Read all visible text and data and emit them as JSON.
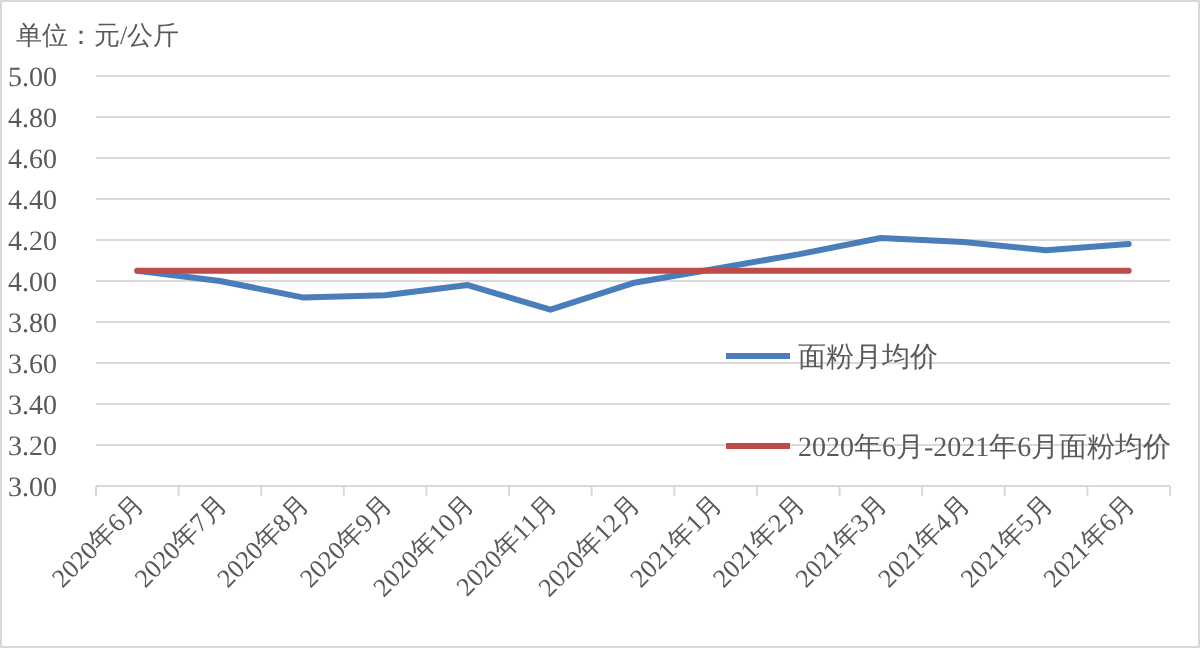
{
  "chart_data": {
    "type": "line",
    "ylabel": "单位：元/公斤",
    "categories": [
      "2020年6月",
      "2020年7月",
      "2020年8月",
      "2020年9月",
      "2020年10月",
      "2020年11月",
      "2020年12月",
      "2021年1月",
      "2021年2月",
      "2021年3月",
      "2021年4月",
      "2021年5月",
      "2021年6月"
    ],
    "series": [
      {
        "name": "面粉月均价",
        "color": "#4a7ebb",
        "values": [
          4.05,
          4.0,
          3.92,
          3.93,
          3.98,
          3.86,
          3.99,
          4.06,
          4.13,
          4.21,
          4.19,
          4.15,
          4.18
        ]
      },
      {
        "name": "2020年6月-2021年6月面粉均价",
        "color": "#be4b48",
        "values": [
          4.05,
          4.05,
          4.05,
          4.05,
          4.05,
          4.05,
          4.05,
          4.05,
          4.05,
          4.05,
          4.05,
          4.05,
          4.05
        ]
      }
    ],
    "ylim": [
      3.0,
      5.0
    ],
    "yticks": [
      {
        "value": 3.0,
        "label": "3.00"
      },
      {
        "value": 3.2,
        "label": "3.20"
      },
      {
        "value": 3.4,
        "label": "3.40"
      },
      {
        "value": 3.6,
        "label": "3.60"
      },
      {
        "value": 3.8,
        "label": "3.80"
      },
      {
        "value": 4.0,
        "label": "4.00"
      },
      {
        "value": 4.2,
        "label": "4.20"
      },
      {
        "value": 4.4,
        "label": "4.40"
      },
      {
        "value": 4.6,
        "label": "4.60"
      },
      {
        "value": 4.8,
        "label": "4.80"
      },
      {
        "value": 5.0,
        "label": "5.00"
      }
    ],
    "grid": "y",
    "legend": "right",
    "marker": "none",
    "line_style": "solid"
  }
}
